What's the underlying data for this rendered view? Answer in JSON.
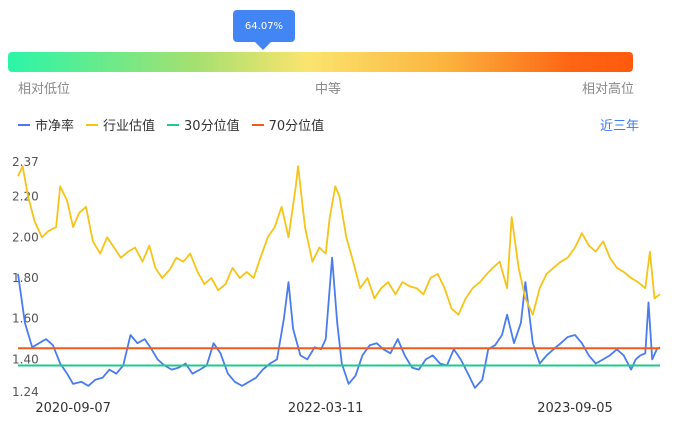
{
  "slider": {
    "tooltip_value": "64.07%",
    "position_fraction": 0.4,
    "label_low": "相对低位",
    "label_mid": "中等",
    "label_high": "相对高位"
  },
  "legend": [
    {
      "name": "市净率",
      "color": "#4a7cf0"
    },
    {
      "name": "行业估值",
      "color": "#f6c418"
    },
    {
      "name": "30分位值",
      "color": "#22c98d"
    },
    {
      "name": "70分位值",
      "color": "#f35a1e"
    }
  ],
  "period_button": "近三年",
  "chart_data": {
    "type": "line",
    "x_ticks": [
      "2020-09-07",
      "2022-03-11",
      "2023-09-05"
    ],
    "y_ticks": [
      "2.37",
      "2.20",
      "2.00",
      "1.80",
      "1.60",
      "1.40",
      "1.24"
    ],
    "ylim": [
      1.24,
      2.37
    ],
    "x_range": [
      "2020-05-10",
      "2024-03-08"
    ],
    "series": [
      {
        "name": "市净率",
        "color": "#4a7cf0",
        "points": [
          [
            "2020-05-10",
            1.82
          ],
          [
            "2020-05-25",
            1.58
          ],
          [
            "2020-06-10",
            1.46
          ],
          [
            "2020-06-25",
            1.48
          ],
          [
            "2020-07-10",
            1.5
          ],
          [
            "2020-07-25",
            1.47
          ],
          [
            "2020-08-10",
            1.38
          ],
          [
            "2020-08-25",
            1.33
          ],
          [
            "2020-09-07",
            1.28
          ],
          [
            "2020-09-25",
            1.29
          ],
          [
            "2020-10-10",
            1.27
          ],
          [
            "2020-10-25",
            1.3
          ],
          [
            "2020-11-10",
            1.31
          ],
          [
            "2020-11-25",
            1.35
          ],
          [
            "2020-12-10",
            1.33
          ],
          [
            "2020-12-25",
            1.37
          ],
          [
            "2021-01-10",
            1.52
          ],
          [
            "2021-01-25",
            1.48
          ],
          [
            "2021-02-10",
            1.5
          ],
          [
            "2021-02-25",
            1.45
          ],
          [
            "2021-03-10",
            1.4
          ],
          [
            "2021-03-25",
            1.37
          ],
          [
            "2021-04-10",
            1.35
          ],
          [
            "2021-04-25",
            1.36
          ],
          [
            "2021-05-10",
            1.38
          ],
          [
            "2021-05-25",
            1.33
          ],
          [
            "2021-06-10",
            1.35
          ],
          [
            "2021-06-25",
            1.37
          ],
          [
            "2021-07-10",
            1.48
          ],
          [
            "2021-07-25",
            1.43
          ],
          [
            "2021-08-10",
            1.33
          ],
          [
            "2021-08-25",
            1.29
          ],
          [
            "2021-09-10",
            1.27
          ],
          [
            "2021-09-25",
            1.29
          ],
          [
            "2021-10-10",
            1.31
          ],
          [
            "2021-10-25",
            1.35
          ],
          [
            "2021-11-10",
            1.38
          ],
          [
            "2021-11-25",
            1.4
          ],
          [
            "2021-12-10",
            1.6
          ],
          [
            "2021-12-20",
            1.78
          ],
          [
            "2021-12-30",
            1.55
          ],
          [
            "2022-01-15",
            1.42
          ],
          [
            "2022-01-30",
            1.4
          ],
          [
            "2022-02-15",
            1.46
          ],
          [
            "2022-03-01",
            1.45
          ],
          [
            "2022-03-11",
            1.5
          ],
          [
            "2022-03-25",
            1.9
          ],
          [
            "2022-04-05",
            1.58
          ],
          [
            "2022-04-15",
            1.38
          ],
          [
            "2022-04-30",
            1.28
          ],
          [
            "2022-05-15",
            1.32
          ],
          [
            "2022-05-30",
            1.42
          ],
          [
            "2022-06-15",
            1.47
          ],
          [
            "2022-06-30",
            1.48
          ],
          [
            "2022-07-15",
            1.45
          ],
          [
            "2022-07-30",
            1.43
          ],
          [
            "2022-08-15",
            1.5
          ],
          [
            "2022-08-30",
            1.42
          ],
          [
            "2022-09-15",
            1.36
          ],
          [
            "2022-09-30",
            1.35
          ],
          [
            "2022-10-15",
            1.4
          ],
          [
            "2022-10-30",
            1.42
          ],
          [
            "2022-11-15",
            1.38
          ],
          [
            "2022-11-30",
            1.37
          ],
          [
            "2022-12-15",
            1.45
          ],
          [
            "2022-12-30",
            1.4
          ],
          [
            "2023-01-15",
            1.33
          ],
          [
            "2023-01-30",
            1.26
          ],
          [
            "2023-02-15",
            1.3
          ],
          [
            "2023-02-28",
            1.45
          ],
          [
            "2023-03-15",
            1.47
          ],
          [
            "2023-03-30",
            1.52
          ],
          [
            "2023-04-10",
            1.62
          ],
          [
            "2023-04-25",
            1.48
          ],
          [
            "2023-05-10",
            1.58
          ],
          [
            "2023-05-20",
            1.78
          ],
          [
            "2023-06-05",
            1.48
          ],
          [
            "2023-06-20",
            1.38
          ],
          [
            "2023-07-05",
            1.42
          ],
          [
            "2023-07-20",
            1.45
          ],
          [
            "2023-08-05",
            1.48
          ],
          [
            "2023-08-20",
            1.51
          ],
          [
            "2023-09-05",
            1.52
          ],
          [
            "2023-09-20",
            1.48
          ],
          [
            "2023-10-05",
            1.42
          ],
          [
            "2023-10-20",
            1.38
          ],
          [
            "2023-11-05",
            1.4
          ],
          [
            "2023-11-20",
            1.42
          ],
          [
            "2023-12-05",
            1.45
          ],
          [
            "2023-12-20",
            1.42
          ],
          [
            "2024-01-05",
            1.35
          ],
          [
            "2024-01-15",
            1.4
          ],
          [
            "2024-01-25",
            1.42
          ],
          [
            "2024-02-05",
            1.43
          ],
          [
            "2024-02-12",
            1.68
          ],
          [
            "2024-02-20",
            1.4
          ],
          [
            "2024-03-01",
            1.45
          ],
          [
            "2024-03-08",
            1.46
          ]
        ]
      },
      {
        "name": "行业估值",
        "color": "#f6c418",
        "points": [
          [
            "2020-05-10",
            2.3
          ],
          [
            "2020-05-20",
            2.35
          ],
          [
            "2020-06-01",
            2.2
          ],
          [
            "2020-06-15",
            2.08
          ],
          [
            "2020-07-01",
            2.0
          ],
          [
            "2020-07-15",
            2.03
          ],
          [
            "2020-08-01",
            2.05
          ],
          [
            "2020-08-10",
            2.25
          ],
          [
            "2020-08-25",
            2.18
          ],
          [
            "2020-09-07",
            2.05
          ],
          [
            "2020-09-20",
            2.12
          ],
          [
            "2020-10-05",
            2.15
          ],
          [
            "2020-10-20",
            1.98
          ],
          [
            "2020-11-05",
            1.92
          ],
          [
            "2020-11-20",
            2.0
          ],
          [
            "2020-12-05",
            1.95
          ],
          [
            "2020-12-20",
            1.9
          ],
          [
            "2021-01-05",
            1.93
          ],
          [
            "2021-01-20",
            1.95
          ],
          [
            "2021-02-05",
            1.88
          ],
          [
            "2021-02-20",
            1.96
          ],
          [
            "2021-03-05",
            1.85
          ],
          [
            "2021-03-20",
            1.8
          ],
          [
            "2021-04-05",
            1.84
          ],
          [
            "2021-04-20",
            1.9
          ],
          [
            "2021-05-05",
            1.88
          ],
          [
            "2021-05-20",
            1.92
          ],
          [
            "2021-06-05",
            1.83
          ],
          [
            "2021-06-20",
            1.77
          ],
          [
            "2021-07-05",
            1.8
          ],
          [
            "2021-07-20",
            1.74
          ],
          [
            "2021-08-05",
            1.77
          ],
          [
            "2021-08-20",
            1.85
          ],
          [
            "2021-09-05",
            1.8
          ],
          [
            "2021-09-20",
            1.83
          ],
          [
            "2021-10-05",
            1.8
          ],
          [
            "2021-10-20",
            1.9
          ],
          [
            "2021-11-05",
            2.0
          ],
          [
            "2021-11-20",
            2.05
          ],
          [
            "2021-12-05",
            2.15
          ],
          [
            "2021-12-20",
            2.0
          ],
          [
            "2022-01-05",
            2.25
          ],
          [
            "2022-01-10",
            2.35
          ],
          [
            "2022-01-25",
            2.05
          ],
          [
            "2022-02-10",
            1.88
          ],
          [
            "2022-02-25",
            1.95
          ],
          [
            "2022-03-11",
            1.92
          ],
          [
            "2022-03-20",
            2.1
          ],
          [
            "2022-04-01",
            2.25
          ],
          [
            "2022-04-10",
            2.2
          ],
          [
            "2022-04-25",
            2.0
          ],
          [
            "2022-05-10",
            1.88
          ],
          [
            "2022-05-25",
            1.75
          ],
          [
            "2022-06-10",
            1.8
          ],
          [
            "2022-06-25",
            1.7
          ],
          [
            "2022-07-10",
            1.75
          ],
          [
            "2022-07-25",
            1.78
          ],
          [
            "2022-08-10",
            1.72
          ],
          [
            "2022-08-25",
            1.78
          ],
          [
            "2022-09-10",
            1.76
          ],
          [
            "2022-09-25",
            1.75
          ],
          [
            "2022-10-10",
            1.72
          ],
          [
            "2022-10-25",
            1.8
          ],
          [
            "2022-11-10",
            1.82
          ],
          [
            "2022-11-25",
            1.75
          ],
          [
            "2022-12-10",
            1.65
          ],
          [
            "2022-12-25",
            1.62
          ],
          [
            "2023-01-10",
            1.7
          ],
          [
            "2023-01-25",
            1.75
          ],
          [
            "2023-02-10",
            1.78
          ],
          [
            "2023-02-25",
            1.82
          ],
          [
            "2023-03-10",
            1.85
          ],
          [
            "2023-03-25",
            1.88
          ],
          [
            "2023-04-10",
            1.75
          ],
          [
            "2023-04-20",
            2.1
          ],
          [
            "2023-05-05",
            1.85
          ],
          [
            "2023-05-20",
            1.7
          ],
          [
            "2023-06-05",
            1.62
          ],
          [
            "2023-06-20",
            1.75
          ],
          [
            "2023-07-05",
            1.82
          ],
          [
            "2023-07-20",
            1.85
          ],
          [
            "2023-08-05",
            1.88
          ],
          [
            "2023-08-20",
            1.9
          ],
          [
            "2023-09-05",
            1.95
          ],
          [
            "2023-09-20",
            2.02
          ],
          [
            "2023-10-05",
            1.96
          ],
          [
            "2023-10-20",
            1.93
          ],
          [
            "2023-11-05",
            1.98
          ],
          [
            "2023-11-20",
            1.9
          ],
          [
            "2023-12-05",
            1.85
          ],
          [
            "2023-12-20",
            1.83
          ],
          [
            "2024-01-05",
            1.8
          ],
          [
            "2024-01-20",
            1.78
          ],
          [
            "2024-02-05",
            1.75
          ],
          [
            "2024-02-15",
            1.93
          ],
          [
            "2024-02-25",
            1.7
          ],
          [
            "2024-03-08",
            1.72
          ]
        ]
      },
      {
        "name": "30分位值",
        "color": "#22c98d",
        "points": [
          [
            "2020-05-10",
            1.37
          ],
          [
            "2024-03-08",
            1.37
          ]
        ]
      },
      {
        "name": "70分位值",
        "color": "#f35a1e",
        "points": [
          [
            "2020-05-10",
            1.455
          ],
          [
            "2024-03-08",
            1.455
          ]
        ]
      }
    ]
  }
}
